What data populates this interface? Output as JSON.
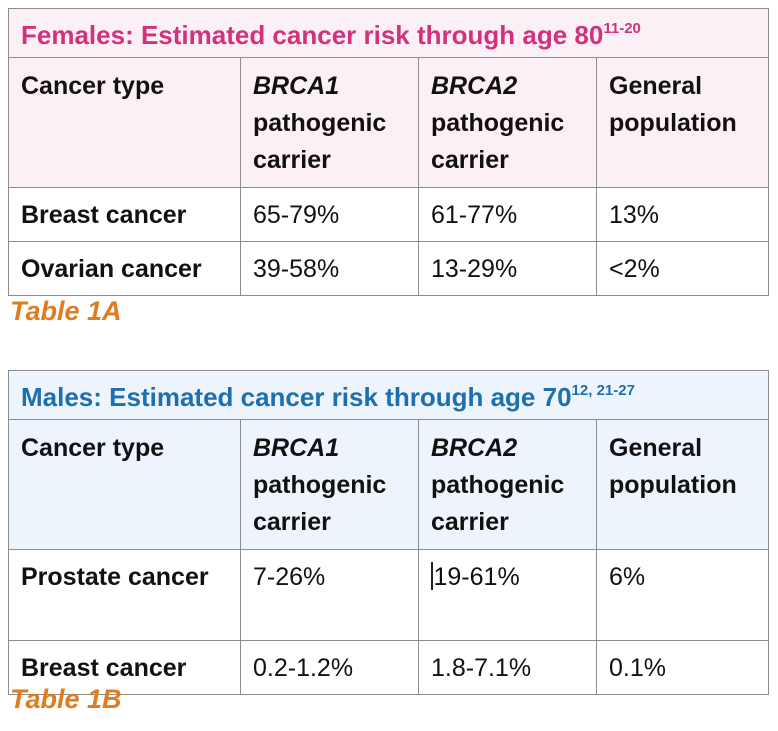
{
  "table_a": {
    "title": "Females: Estimated cancer risk through age 80",
    "title_ref": "11-20",
    "headers": [
      {
        "pre": "Cancer type",
        "em": "",
        "post": ""
      },
      {
        "pre": "",
        "em": "BRCA1",
        "post": " pathogenic carrier"
      },
      {
        "pre": "",
        "em": "BRCA2",
        "post": " pathogenic carrier"
      },
      {
        "pre": "General population",
        "em": "",
        "post": ""
      }
    ],
    "rows": [
      {
        "label": "Breast cancer",
        "values": [
          "65-79%",
          "61-77%",
          "13%"
        ]
      },
      {
        "label": "Ovarian cancer",
        "values": [
          "39-58%",
          "13-29%",
          "<2%"
        ]
      }
    ],
    "caption": "Table 1A",
    "colors": {
      "title": "#d3317d",
      "header_bg": "#fcf0f7"
    }
  },
  "table_b": {
    "title": "Males: Estimated cancer risk through age 70",
    "title_ref": "12, 21-27",
    "headers": [
      {
        "pre": "Cancer type",
        "em": "",
        "post": ""
      },
      {
        "pre": "",
        "em": "BRCA1",
        "post": " pathogenic carrier"
      },
      {
        "pre": "",
        "em": "BRCA2",
        "post": " pathogenic carrier"
      },
      {
        "pre": "General population",
        "em": "",
        "post": ""
      }
    ],
    "rows": [
      {
        "label": "Prostate cancer",
        "values": [
          "7-26%",
          "19-61%",
          "6%"
        ]
      },
      {
        "label": "Breast cancer",
        "values": [
          "0.2-1.2%",
          "1.8-7.1%",
          "0.1%"
        ]
      }
    ],
    "caption": "Table 1B",
    "colors": {
      "title": "#1d6fb0",
      "header_bg": "#eef4fc"
    }
  },
  "caption_color": "#e07b1f"
}
